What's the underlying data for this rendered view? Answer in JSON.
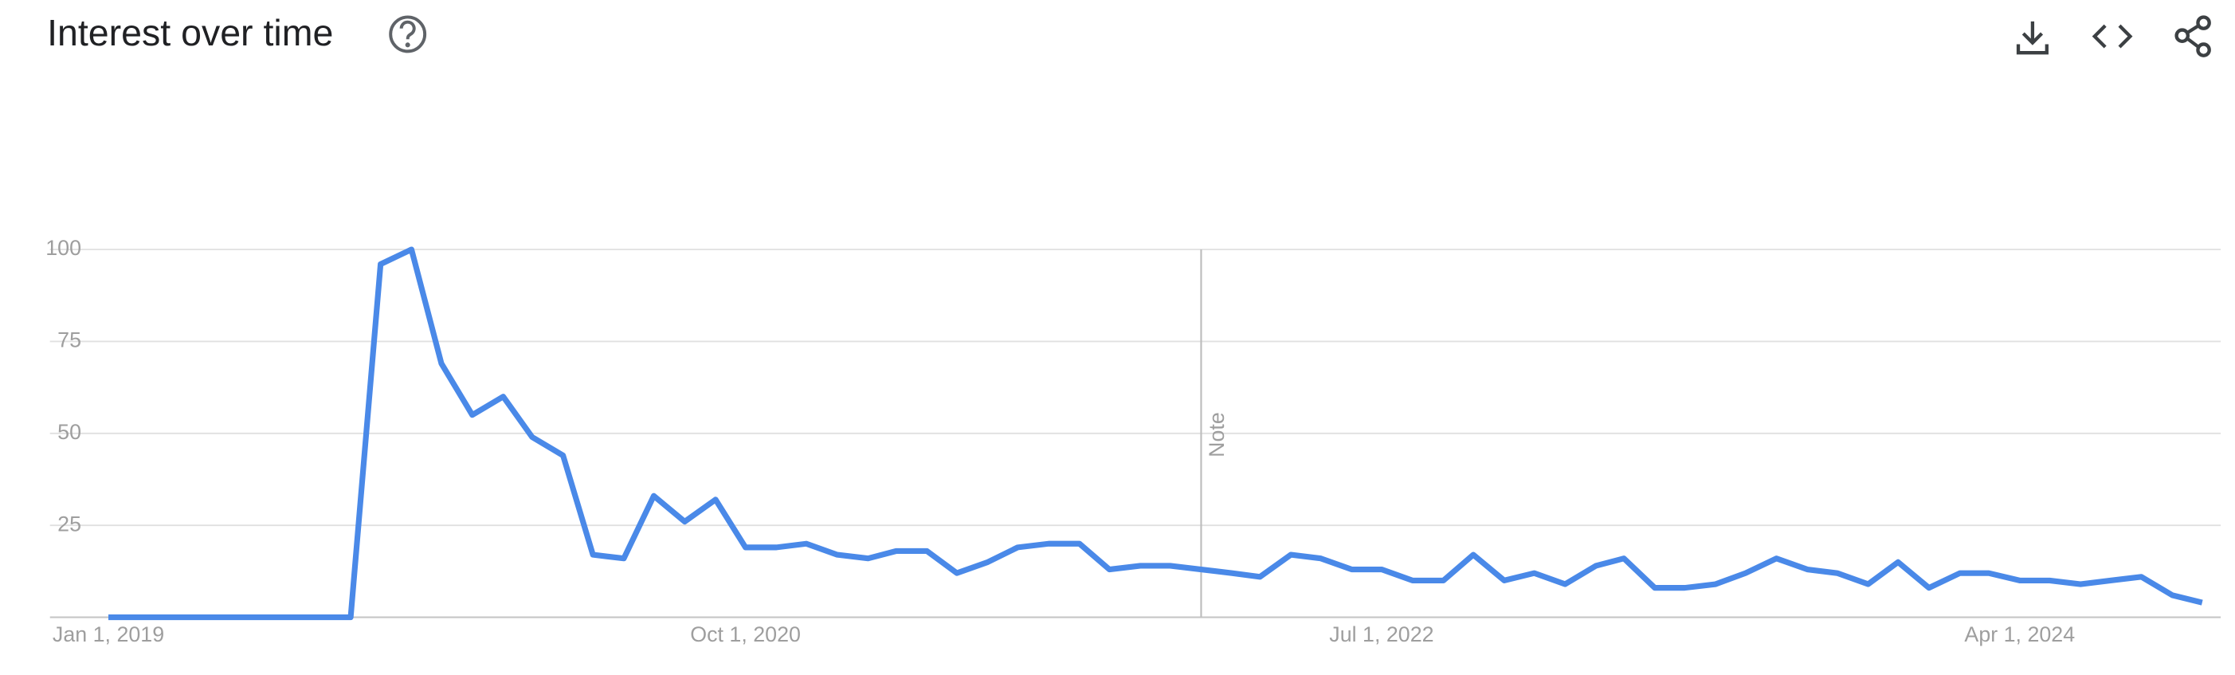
{
  "chart_data": {
    "type": "line",
    "title": "Interest over time",
    "x": [
      "2019-01-01",
      "2019-02-01",
      "2019-03-01",
      "2019-04-01",
      "2019-05-01",
      "2019-06-01",
      "2019-07-01",
      "2019-08-01",
      "2019-09-01",
      "2019-10-01",
      "2019-11-01",
      "2019-12-01",
      "2020-01-01",
      "2020-02-01",
      "2020-03-01",
      "2020-04-01",
      "2020-05-01",
      "2020-06-01",
      "2020-07-01",
      "2020-08-01",
      "2020-09-01",
      "2020-10-01",
      "2020-11-01",
      "2020-12-01",
      "2021-01-01",
      "2021-02-01",
      "2021-03-01",
      "2021-04-01",
      "2021-05-01",
      "2021-06-01",
      "2021-07-01",
      "2021-08-01",
      "2021-09-01",
      "2021-10-01",
      "2021-11-01",
      "2021-12-01",
      "2022-01-01",
      "2022-02-01",
      "2022-03-01",
      "2022-04-01",
      "2022-05-01",
      "2022-06-01",
      "2022-07-01",
      "2022-08-01",
      "2022-09-01",
      "2022-10-01",
      "2022-11-01",
      "2022-12-01",
      "2023-01-01",
      "2023-02-01",
      "2023-03-01",
      "2023-04-01",
      "2023-05-01",
      "2023-06-01",
      "2023-07-01",
      "2023-08-01",
      "2023-09-01",
      "2023-10-01",
      "2023-11-01",
      "2023-12-01",
      "2024-01-01",
      "2024-02-01",
      "2024-03-01",
      "2024-04-01",
      "2024-05-01",
      "2024-06-01",
      "2024-07-01",
      "2024-08-01",
      "2024-09-01",
      "2024-10-01"
    ],
    "series": [
      {
        "color": "#4a89e8",
        "values": [
          0,
          0,
          0,
          0,
          0,
          0,
          0,
          0,
          0,
          96,
          100,
          69,
          55,
          60,
          49,
          44,
          17,
          16,
          33,
          26,
          32,
          19,
          19,
          20,
          17,
          16,
          18,
          18,
          12,
          15,
          19,
          20,
          20,
          13,
          14,
          14,
          13,
          12,
          11,
          17,
          16,
          13,
          13,
          10,
          10,
          17,
          10,
          12,
          9,
          14,
          16,
          8,
          8,
          9,
          12,
          16,
          13,
          12,
          9,
          15,
          8,
          12,
          12,
          10,
          10,
          9,
          10,
          11,
          6,
          4
        ]
      }
    ],
    "xlim": [
      "2019-01-01",
      "2024-10-01"
    ],
    "xticks": [
      {
        "value": "2019-01-01",
        "label": "Jan 1, 2019"
      },
      {
        "value": "2020-10-01",
        "label": "Oct 1, 2020"
      },
      {
        "value": "2022-07-01",
        "label": "Jul 1, 2022"
      },
      {
        "value": "2024-04-01",
        "label": "Apr 1, 2024"
      }
    ],
    "ylim": [
      0,
      100
    ],
    "yticks": [
      25,
      50,
      75,
      100
    ],
    "grid": true,
    "note": {
      "x": "2022-01-01",
      "label": "Note"
    }
  }
}
